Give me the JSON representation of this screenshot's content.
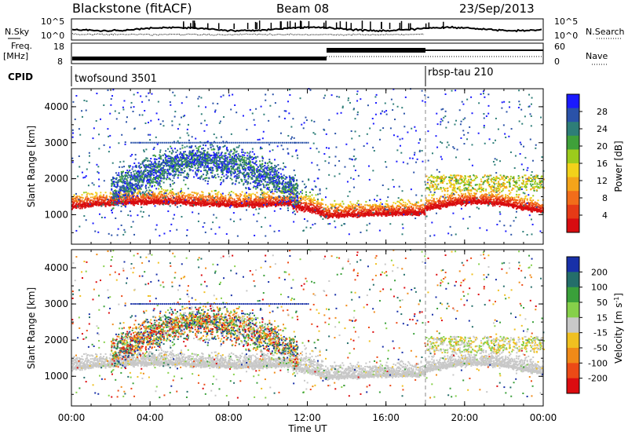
{
  "header": {
    "title": "Blackstone (fitACF)",
    "beam": "Beam 08",
    "date": "23/Sep/2013"
  },
  "noise_panel": {
    "left_label": "N.Sky",
    "right_label": "N.Search",
    "ticks_left": [
      "10^5",
      "10^0"
    ],
    "ticks_right": [
      "10^5",
      "10^0"
    ]
  },
  "freq_panel": {
    "left_label_1": "Freq.",
    "left_label_2": "[MHz]",
    "right_label": "Nave",
    "ticks_left": [
      "18",
      "8"
    ],
    "ticks_right": [
      "60",
      "0"
    ]
  },
  "cpid": {
    "label": "CPID",
    "segments": [
      {
        "name": "twofsound 3501",
        "start": 0,
        "end": 18
      },
      {
        "name": "rbsp-tau 210",
        "start": 18,
        "end": 24
      }
    ]
  },
  "x_axis": {
    "title": "Time UT",
    "ticks": [
      "00:00",
      "04:00",
      "08:00",
      "12:00",
      "16:00",
      "20:00",
      "00:00"
    ],
    "range": [
      0,
      24
    ]
  },
  "chart_data": [
    {
      "type": "heatmap",
      "panel": "power",
      "ylabel": "Slant Range [km]",
      "yticks": [
        1000,
        2000,
        3000,
        4000
      ],
      "ylim": [
        180,
        4500
      ],
      "colorbar_label": "Power [dB]",
      "colorbar_ticks": [
        "28",
        "24",
        "20",
        "16",
        "12",
        "8",
        "4"
      ],
      "colorbar_range": [
        0,
        30
      ],
      "colors": [
        "#1a1aff",
        "#2a52a8",
        "#2e7e78",
        "#3fa03a",
        "#9ccb1c",
        "#f2d21a",
        "#f4a41a",
        "#f26d1a",
        "#e63a16",
        "#d80c10"
      ]
    },
    {
      "type": "heatmap",
      "panel": "velocity",
      "ylabel": "Slant Range [km]",
      "yticks": [
        1000,
        2000,
        3000,
        4000
      ],
      "ylim": [
        180,
        4500
      ],
      "colorbar_label": "Velocity [m s^-1]",
      "colorbar_ticks": [
        "200",
        "100",
        "50",
        "15",
        "-15",
        "-50",
        "-100",
        "-200"
      ],
      "colorbar_range": [
        -250,
        250
      ],
      "colors": [
        "#1830a8",
        "#246e6a",
        "#3aa03a",
        "#86d04a",
        "#c8c8c8",
        "#f0c020",
        "#f08a18",
        "#ec4a16",
        "#dc0c10"
      ]
    }
  ]
}
